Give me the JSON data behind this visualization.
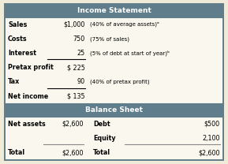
{
  "header_bg": "#607d8b",
  "header_text_color": "#ffffff",
  "row_bg": "#faf8ee",
  "outer_bg": "#f0ead8",
  "border_color": "#607d8b",
  "income_header": "Income Statement",
  "balance_header": "Balance Sheet",
  "income_rows": [
    [
      "Sales",
      "$1,000",
      "(40% of average assets)ᵃ"
    ],
    [
      "Costs",
      "750",
      "(75% of sales)"
    ],
    [
      "Interest",
      "25",
      "(5% of debt at start of year)ᵇ"
    ],
    [
      "Pretax profit",
      "$ 225",
      ""
    ],
    [
      "Tax",
      "90",
      "(40% of pretax profit)"
    ],
    [
      "Net income",
      "$ 135",
      ""
    ]
  ],
  "underline_rows_income": [
    2,
    4
  ],
  "balance_rows": [
    [
      "Net assets",
      "$2,600",
      "Debt",
      "$500"
    ],
    [
      "",
      "",
      "Equity",
      "2,100"
    ],
    [
      "Total",
      "$2,600",
      "Total",
      "$2,600"
    ]
  ],
  "balance_underline_rows": [
    1
  ],
  "figsize": [
    2.89,
    2.08
  ],
  "dpi": 100
}
